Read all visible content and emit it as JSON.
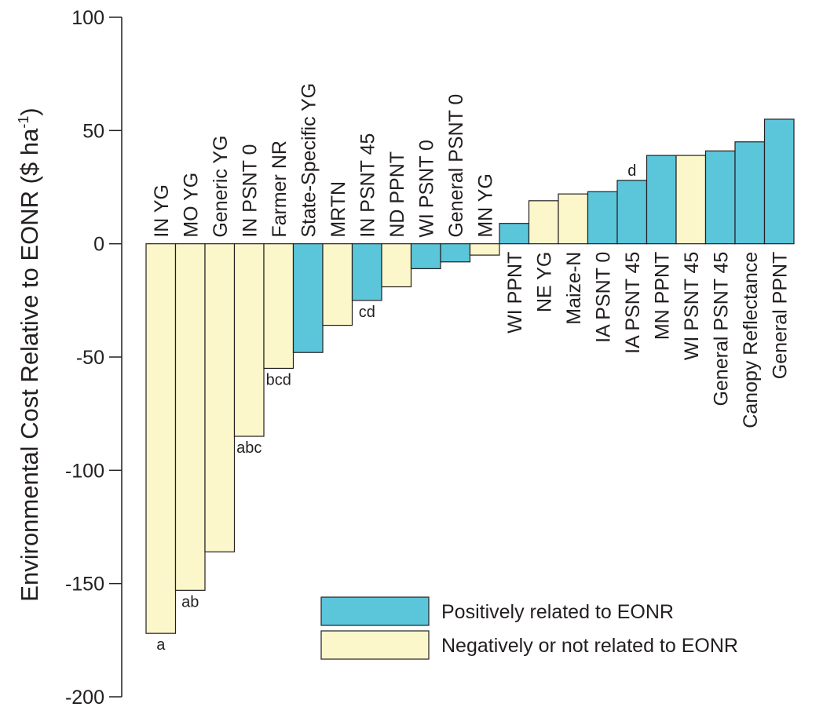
{
  "chart_data": {
    "type": "bar",
    "ylabel": "Environmental Cost Relative to EONR ($ ha",
    "ylabel_sup": "-1",
    "ylabel_close": ")",
    "ylim": [
      -200,
      100
    ],
    "yticks": [
      100,
      50,
      0,
      -50,
      -100,
      -150,
      -200
    ],
    "ytick_labels": [
      "100",
      "50",
      "0",
      "-50",
      "-100",
      "-150",
      "-200"
    ],
    "grid": false,
    "legend_position": "bottom-right",
    "colors": {
      "positive": "#5bc5da",
      "negative": "#fbf7ca",
      "edge": "#231f20"
    },
    "legend": [
      {
        "label": "Positively related to EONR",
        "group": "positive"
      },
      {
        "label": "Negatively or not related to EONR",
        "group": "negative"
      }
    ],
    "categories": [
      "IN YG",
      "MO YG",
      "Generic YG",
      "IN PSNT 0",
      "Farmer NR",
      "State-Specific YG",
      "MRTN",
      "IN PSNT 45",
      "ND PPNT",
      "WI PSNT 0",
      "General PSNT 0",
      "MN YG",
      "WI PPNT",
      "NE YG",
      "Maize-N",
      "IA PSNT 0",
      "IA PSNT 45",
      "MN PPNT",
      "WI PSNT 45",
      "General PSNT 45",
      "Canopy Reflectance",
      "General PPNT"
    ],
    "values": [
      -172,
      -153,
      -136,
      -85,
      -55,
      -48,
      -36,
      -25,
      -19,
      -11,
      -8,
      -5,
      9,
      19,
      22,
      23,
      28,
      39,
      39,
      41,
      45,
      55
    ],
    "groups": [
      "negative",
      "negative",
      "negative",
      "negative",
      "negative",
      "positive",
      "negative",
      "positive",
      "negative",
      "positive",
      "positive",
      "negative",
      "positive",
      "negative",
      "negative",
      "positive",
      "positive",
      "positive",
      "negative",
      "positive",
      "positive",
      "positive"
    ],
    "annotations": [
      {
        "category": "IN YG",
        "text": "a"
      },
      {
        "category": "MO YG",
        "text": "ab"
      },
      {
        "category": "IN PSNT 0",
        "text": "abc"
      },
      {
        "category": "Farmer NR",
        "text": "bcd"
      },
      {
        "category": "IN PSNT 45",
        "text": "cd"
      },
      {
        "category": "IA PSNT 45",
        "text": "d"
      }
    ]
  }
}
